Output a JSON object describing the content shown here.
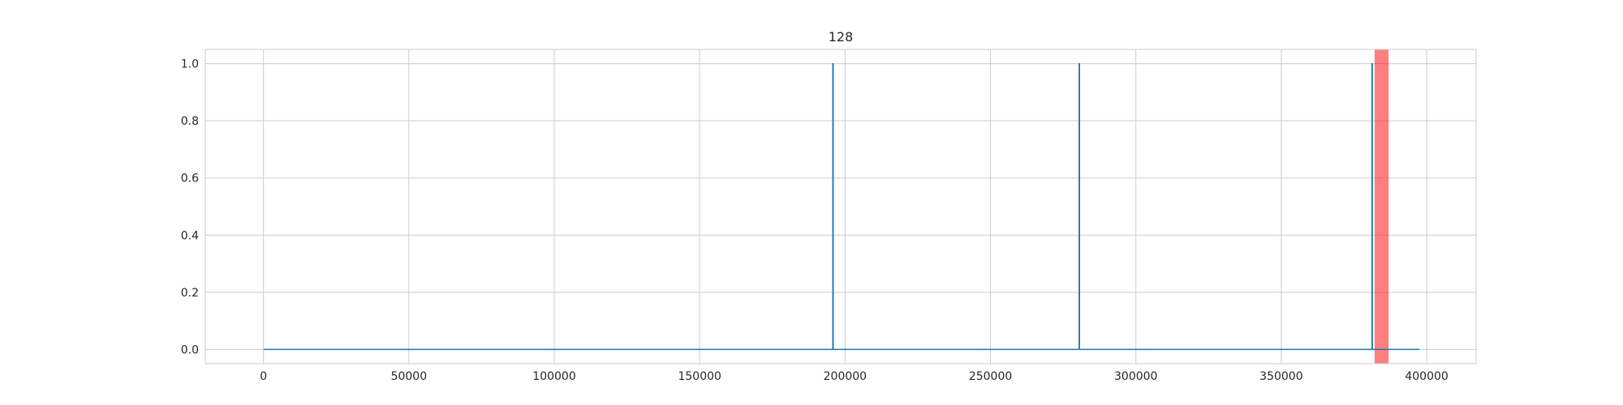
{
  "chart_data": {
    "type": "line",
    "title": "128",
    "xlabel": "",
    "ylabel": "",
    "xlim": [
      -20000,
      417000
    ],
    "ylim": [
      -0.05,
      1.05
    ],
    "x_ticks": [
      0,
      50000,
      100000,
      150000,
      200000,
      250000,
      300000,
      350000,
      400000
    ],
    "x_tick_labels": [
      "0",
      "50000",
      "100000",
      "150000",
      "200000",
      "250000",
      "300000",
      "350000",
      "400000"
    ],
    "y_ticks": [
      0.0,
      0.2,
      0.4,
      0.6,
      0.8,
      1.0
    ],
    "y_tick_labels": [
      "0.0",
      "0.2",
      "0.4",
      "0.6",
      "0.8",
      "1.0"
    ],
    "grid": true,
    "series": [
      {
        "color": "#1f77b4",
        "x": [
          0,
          195800,
          195800,
          195900,
          195900,
          280500,
          280500,
          280600,
          280600,
          381200,
          381200,
          381300,
          381300,
          397500
        ],
        "y": [
          0,
          0,
          1,
          1,
          0,
          0,
          1,
          1,
          0,
          0,
          1,
          1,
          0,
          0
        ]
      }
    ],
    "highlight_spans": [
      {
        "x_start": 382100,
        "x_end": 386900,
        "color": "#ff0000",
        "alpha": 0.5
      }
    ]
  }
}
